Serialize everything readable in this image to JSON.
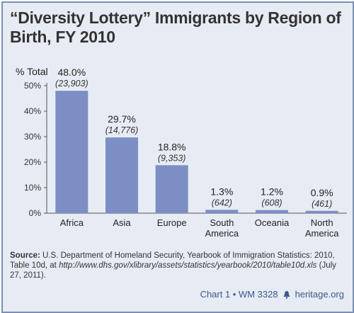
{
  "title": "“Diversity Lottery” Immigrants by Region of Birth, FY 2010",
  "chart_data": {
    "type": "bar",
    "ylabel": "% Total",
    "ylim": [
      0,
      50
    ],
    "yticks": [
      "0%",
      "10%",
      "20%",
      "30%",
      "40%",
      "50%"
    ],
    "ytick_values": [
      0,
      10,
      20,
      30,
      40,
      50
    ],
    "grid": false,
    "categories": [
      [
        "Africa"
      ],
      [
        "Asia"
      ],
      [
        "Europe"
      ],
      [
        "South",
        "America"
      ],
      [
        "Oceania"
      ],
      [
        "North",
        "America"
      ]
    ],
    "values": [
      48.0,
      29.7,
      18.8,
      1.3,
      1.2,
      0.9
    ],
    "value_labels": [
      "48.0%",
      "29.7%",
      "18.8%",
      "1.3%",
      "1.2%",
      "0.9%"
    ],
    "count_labels": [
      "(23,903)",
      "(14,776)",
      "(9,353)",
      "(642)",
      "(608)",
      "(461)"
    ],
    "bar_color": "#7b8fc4"
  },
  "source": {
    "label": "Source:",
    "text": " U.S. Department of Homeland Security, Yearbook of Immigration Statistics: 2010, Table 10d, at ",
    "url": "http://www.dhs.gov/xlibrary/assets/statistics/yearbook/2010/table10d.xls",
    "date": " (July 27, 2011)."
  },
  "footer": {
    "chart_id": "Chart 1 • WM 3328",
    "brand": "heritage.org",
    "bell_icon": "liberty-bell-icon"
  }
}
